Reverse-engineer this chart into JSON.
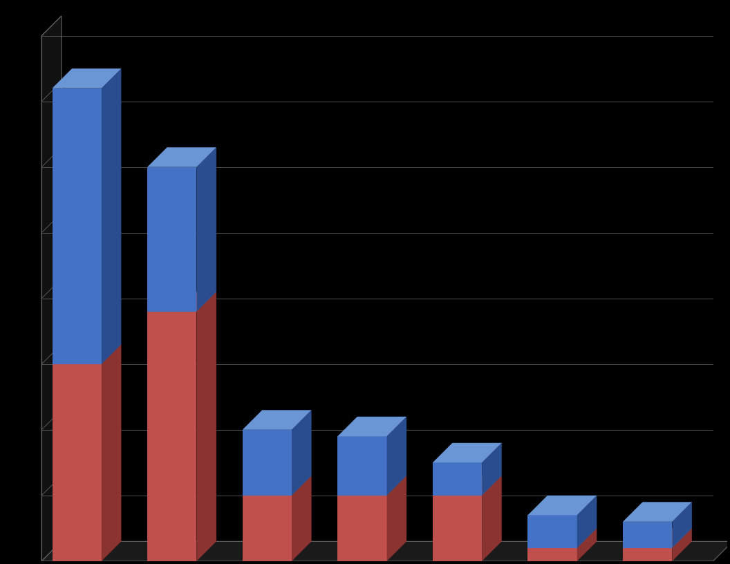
{
  "background_color": "#000000",
  "bar_face_blue": "#4472C4",
  "bar_face_red": "#C0504D",
  "bar_side_blue": "#2A4D8F",
  "bar_side_red": "#8B3330",
  "bar_top_blue": "#6B96D6",
  "bar_top_red": "#D07070",
  "grid_color": "#707070",
  "red_values": [
    30,
    38,
    10,
    10,
    10,
    2,
    2
  ],
  "blue_values": [
    42,
    22,
    10,
    9,
    5,
    5,
    4
  ],
  "ylim": [
    0,
    80
  ],
  "yticks": [
    0,
    10,
    20,
    30,
    40,
    50,
    60,
    70,
    80
  ],
  "figsize": [
    10.56,
    8.16
  ],
  "dpi": 100
}
